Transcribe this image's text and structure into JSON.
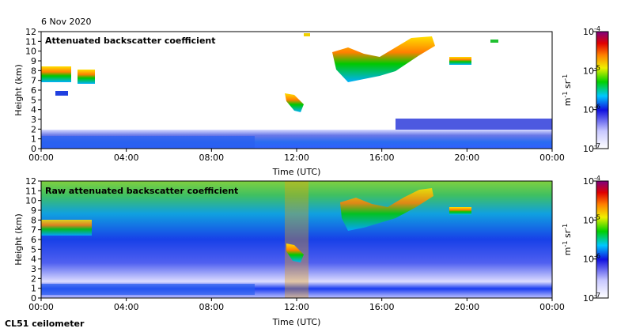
{
  "date": "6 Nov 2020",
  "instrument": "CL51 ceilometer",
  "chart_data": [
    {
      "type": "heatmap",
      "title": "Attenuated backscatter coefficient",
      "xlabel": "Time (UTC)",
      "ylabel": "Height (km)",
      "x_ticks": [
        "00:00",
        "04:00",
        "08:00",
        "12:00",
        "16:00",
        "20:00",
        "00:00"
      ],
      "y_ticks": [
        "0",
        "1",
        "2",
        "3",
        "4",
        "5",
        "6",
        "7",
        "8",
        "9",
        "10",
        "11",
        "12"
      ],
      "xlim": [
        "00:00",
        "24:00"
      ],
      "ylim": [
        0,
        12
      ],
      "colorbar": {
        "label": "m-1 sr-1",
        "scale": "log",
        "range": [
          1e-07,
          0.0001
        ],
        "ticks": [
          "10-7",
          "10-6",
          "10-5",
          "10-4"
        ]
      },
      "features": [
        {
          "name": "boundary layer",
          "time": [
            "00:00",
            "24:00"
          ],
          "height_km": [
            0,
            2
          ]
        },
        {
          "name": "cloud",
          "time": [
            "00:00",
            "01:30"
          ],
          "height_km": [
            6.8,
            8.2
          ]
        },
        {
          "name": "cloud",
          "time": [
            "01:30",
            "02:50"
          ],
          "height_km": [
            6.6,
            7.9
          ]
        },
        {
          "name": "cloud",
          "time": [
            "00:50",
            "01:40"
          ],
          "height_km": [
            5.3,
            5.7
          ]
        },
        {
          "name": "cloud",
          "time": [
            "11:30",
            "12:30"
          ],
          "height_km": [
            3.8,
            5.8
          ]
        },
        {
          "name": "cloud",
          "time": [
            "14:00",
            "18:20"
          ],
          "height_km": [
            6.5,
            11.5
          ]
        },
        {
          "name": "cloud",
          "time": [
            "19:40",
            "20:30"
          ],
          "height_km": [
            8.4,
            9.4
          ]
        },
        {
          "name": "cloud",
          "time": [
            "21:00",
            "21:30"
          ],
          "height_km": [
            11,
            11.4
          ]
        }
      ]
    },
    {
      "type": "heatmap",
      "title": "Raw attenuated backscatter coefficient",
      "xlabel": "Time (UTC)",
      "ylabel": "Height (km)",
      "x_ticks": [
        "00:00",
        "04:00",
        "08:00",
        "12:00",
        "16:00",
        "20:00",
        "00:00"
      ],
      "y_ticks": [
        "0",
        "1",
        "2",
        "3",
        "4",
        "5",
        "6",
        "7",
        "8",
        "9",
        "10",
        "11",
        "12"
      ],
      "xlim": [
        "00:00",
        "24:00"
      ],
      "ylim": [
        0,
        12
      ],
      "colorbar": {
        "label": "m-1 sr-1",
        "scale": "log",
        "range": [
          1e-07,
          0.0001
        ],
        "ticks": [
          "10-7",
          "10-6",
          "10-5",
          "10-4"
        ]
      },
      "features": [
        {
          "name": "boundary layer",
          "time": [
            "00:00",
            "24:00"
          ],
          "height_km": [
            0,
            2
          ]
        },
        {
          "name": "cloud",
          "time": [
            "00:00",
            "02:50"
          ],
          "height_km": [
            6.5,
            8.2
          ]
        },
        {
          "name": "cloud",
          "time": [
            "11:30",
            "12:30"
          ],
          "height_km": [
            3.8,
            5.8
          ]
        },
        {
          "name": "cloud",
          "time": [
            "14:00",
            "18:20"
          ],
          "height_km": [
            6.5,
            11.5
          ]
        },
        {
          "name": "cloud",
          "time": [
            "19:40",
            "20:30"
          ],
          "height_km": [
            8.4,
            9.4
          ]
        }
      ]
    }
  ]
}
